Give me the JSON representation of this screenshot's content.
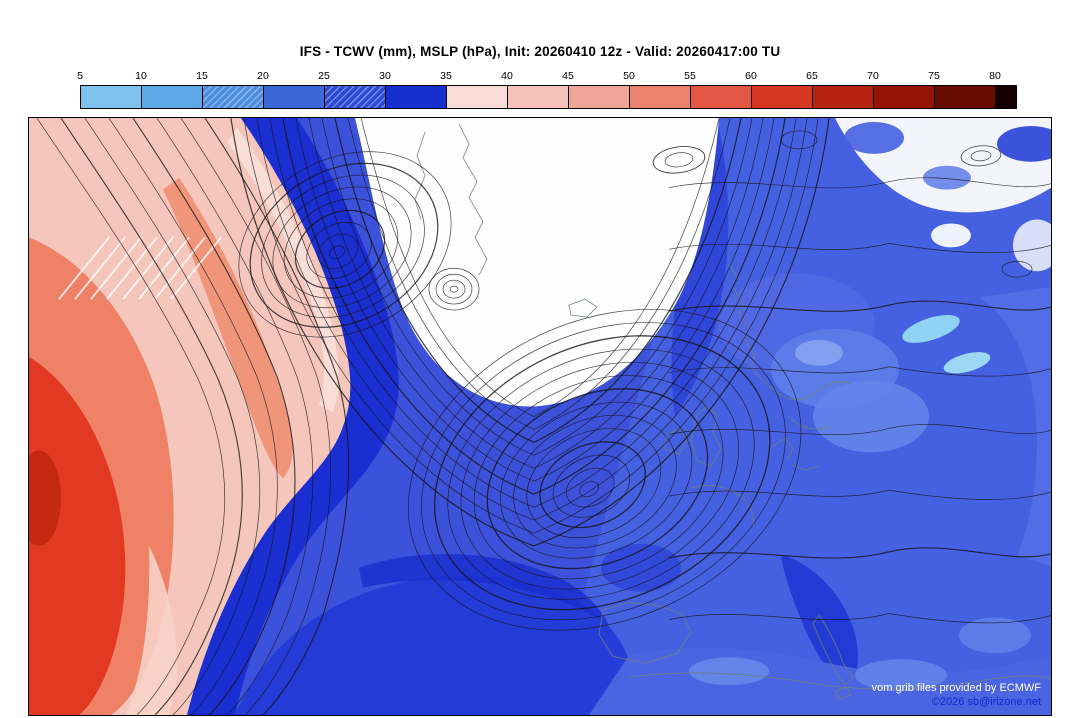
{
  "header": {
    "title": "IFS - TCWV (mm), MSLP (hPa), Init: 20260410 12z - Valid: 20260417:00 TU"
  },
  "colorbar": {
    "unit": "mm",
    "tick_labels": [
      "5",
      "10",
      "15",
      "20",
      "25",
      "30",
      "35",
      "40",
      "45",
      "50",
      "55",
      "60",
      "65",
      "70",
      "75",
      "80"
    ],
    "segment_colors": [
      "#7ec2ee",
      "#5fa8e8",
      "#4c8de0",
      "#3a68d8",
      "#2b49d4",
      "#1530ce",
      "#f8dcd6",
      "#f4c2b8",
      "#f0a596",
      "#ea8270",
      "#e25844",
      "#d63722",
      "#b52410",
      "#941504",
      "#690c00",
      "#140000"
    ],
    "hatched_segments": [
      2,
      4
    ]
  },
  "map": {
    "attribution_line1": "vom grib files provided by ECMWF",
    "attribution_line2": "©2026 sb@irizone.net",
    "colors": {
      "moist_blue": "#3c52db",
      "deep_moist_blue": "#1a2ed2",
      "dry_white": "#ffffff",
      "subtropical_red": "#e23a22",
      "contour_black": "#141414"
    }
  },
  "chart_data": {
    "type": "heatmap",
    "title": "IFS - TCWV (mm), MSLP (hPa), Init: 20260410 12z - Valid: 20260417:00 TU",
    "shaded_variable": "TCWV (mm)",
    "contoured_variable": "MSLP (hPa)",
    "scale_min": 5,
    "scale_max": 80,
    "scale_step": 5,
    "legend_position": "top"
  }
}
